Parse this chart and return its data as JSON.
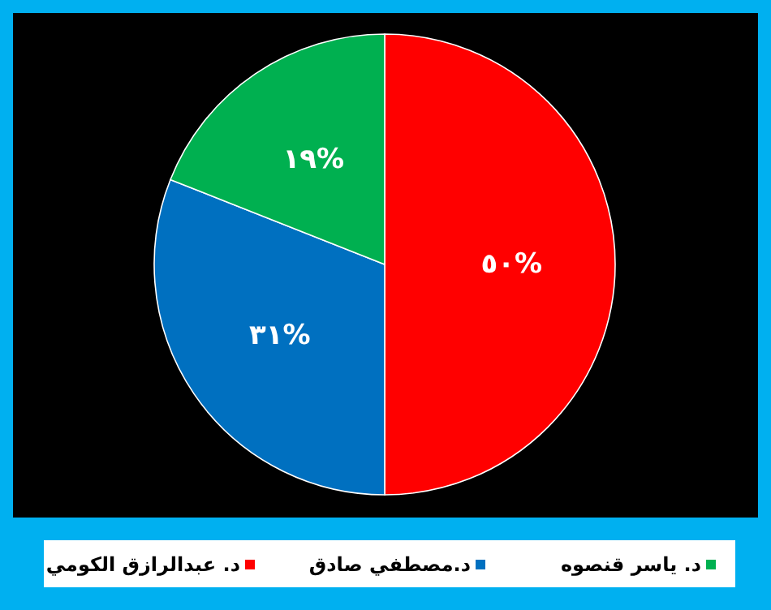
{
  "chart_data": {
    "type": "pie",
    "categories": [
      "د. عبدالرازق الكومي",
      "د.مصطفي صادق",
      "د. ياسر قنصوه"
    ],
    "values": [
      50,
      31,
      19
    ],
    "colors": [
      "#ff0000",
      "#0070c0",
      "#00b050"
    ],
    "value_labels": [
      "٥٠%",
      "٣١%",
      "١٩%"
    ],
    "legend": "bottom"
  }
}
